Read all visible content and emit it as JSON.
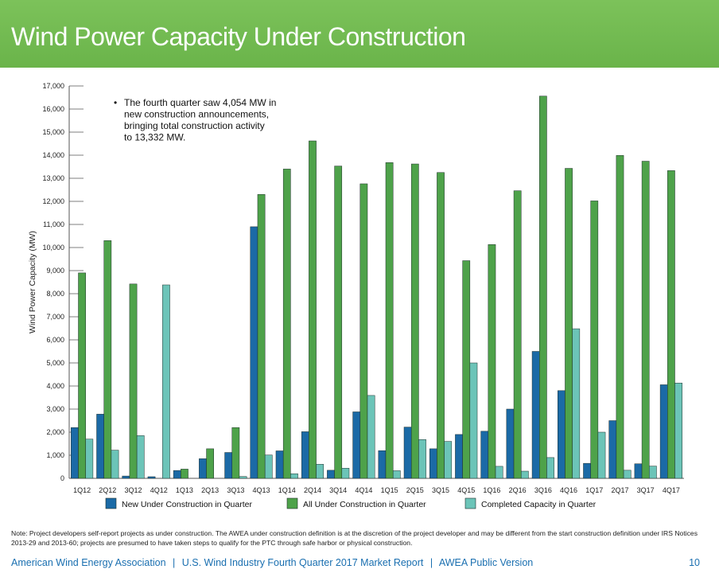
{
  "header": {
    "title": "Wind Power Capacity Under Construction"
  },
  "colors": {
    "header_bg": "#6ab44a",
    "new": "#1b6aa6",
    "all": "#4ea24a",
    "completed": "#6cc4b8",
    "footer_text": "#1a6fb0",
    "grid": "#555555"
  },
  "chart_data": {
    "type": "bar",
    "title": "Wind Power Capacity Under Construction",
    "ylabel": "Wind Power Capacity (MW)",
    "xlabel": "",
    "ylim": [
      0,
      17000
    ],
    "yticks": [
      0,
      1000,
      2000,
      3000,
      4000,
      5000,
      6000,
      7000,
      8000,
      9000,
      10000,
      11000,
      12000,
      13000,
      14000,
      15000,
      16000,
      17000
    ],
    "ytick_labels": [
      "0",
      "1,000",
      "2,000",
      "3,000",
      "4,000",
      "5,000",
      "6,000",
      "7,000",
      "8,000",
      "9,000",
      "10,000",
      "11,000",
      "12,000",
      "13,000",
      "14,000",
      "15,000",
      "16,000",
      "17,000"
    ],
    "categories": [
      "1Q12",
      "2Q12",
      "3Q12",
      "4Q12",
      "1Q13",
      "2Q13",
      "3Q13",
      "4Q13",
      "1Q14",
      "2Q14",
      "3Q14",
      "4Q14",
      "1Q15",
      "2Q15",
      "3Q15",
      "4Q15",
      "1Q16",
      "2Q16",
      "3Q16",
      "4Q16",
      "1Q17",
      "2Q17",
      "3Q17",
      "4Q17"
    ],
    "series": [
      {
        "name": "New Under Construction in Quarter",
        "color": "#1b6aa6",
        "values": [
          2200,
          2780,
          100,
          70,
          340,
          850,
          1120,
          10900,
          1190,
          2020,
          350,
          2880,
          1200,
          2220,
          1280,
          1900,
          2040,
          3000,
          5500,
          3800,
          650,
          2500,
          630,
          4054
        ]
      },
      {
        "name": "All Under Construction in Quarter",
        "color": "#4ea24a",
        "values": [
          8900,
          10300,
          8420,
          0,
          400,
          1280,
          2200,
          12300,
          13400,
          14620,
          13530,
          12760,
          13680,
          13620,
          13250,
          9430,
          10130,
          12460,
          16560,
          13430,
          12020,
          13990,
          13740,
          13332
        ]
      },
      {
        "name": "Completed Capacity in Quarter",
        "color": "#6cc4b8",
        "values": [
          1700,
          1220,
          1850,
          8380,
          0,
          0,
          80,
          1010,
          200,
          610,
          440,
          3590,
          330,
          1680,
          1600,
          5000,
          520,
          310,
          900,
          6480,
          2000,
          350,
          530,
          4130
        ]
      }
    ],
    "annotation": {
      "bullet": "•",
      "lines": [
        "The fourth quarter saw 4,054 MW in",
        "new construction announcements,",
        "bringing total construction activity",
        "to 13,332 MW."
      ]
    },
    "legend_position": "bottom"
  },
  "note": "Note: Project developers self-report projects as under construction. The AWEA under construction definition is at the discretion of the project developer and may be different from the start construction definition under IRS Notices 2013-29 and 2013-60; projects are presumed to have taken steps to qualify for the PTC through safe harbor or physical construction.",
  "footer": {
    "org": "American Wind Energy Association",
    "sep1": "|",
    "report": "U.S. Wind Industry Fourth Quarter 2017 Market Report",
    "sep2": "|",
    "version": "AWEA Public Version",
    "page": "10"
  }
}
